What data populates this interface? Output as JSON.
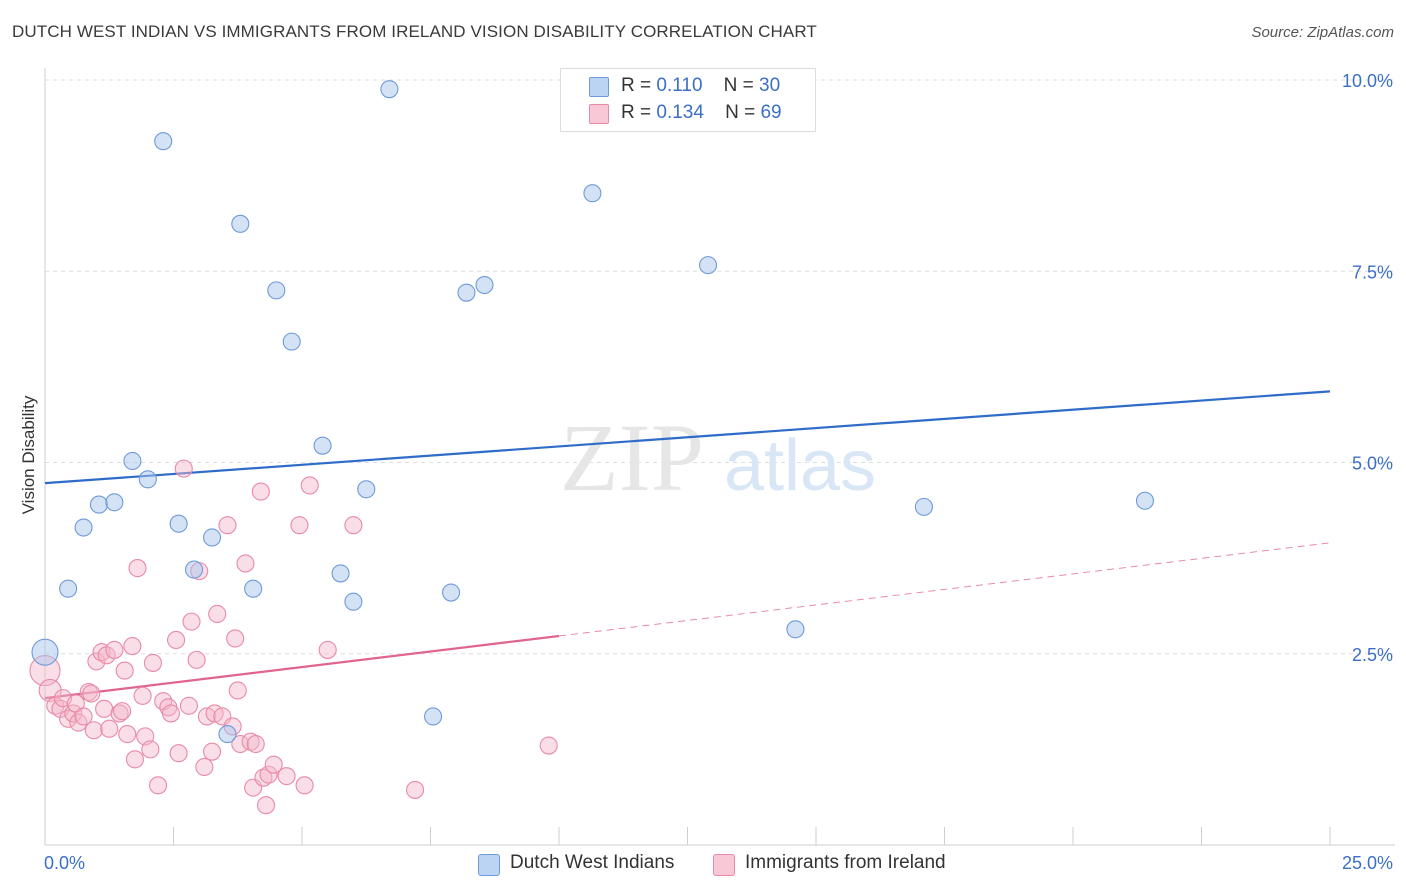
{
  "title": "DUTCH WEST INDIAN VS IMMIGRANTS FROM IRELAND VISION DISABILITY CORRELATION CHART",
  "source": "Source: ZipAtlas.com",
  "legend": {
    "r_label": "R =",
    "n_label": "N =",
    "rows": [
      {
        "r": "0.110",
        "n": "30"
      },
      {
        "r": "0.134",
        "n": "69"
      }
    ]
  },
  "watermark": {
    "zip": "ZIP",
    "atlas": "atlas"
  },
  "colors": {
    "blue_fill": "#a9c6ee",
    "blue_stroke": "#6f9ad8",
    "blue_line": "#2f6cc9",
    "pink_fill": "#f5b6c9",
    "pink_stroke": "#e88aa6",
    "pink_line": "#e0648e",
    "axis_text": "#3b6fc6"
  },
  "chart_data": {
    "type": "scatter",
    "title": "DUTCH WEST INDIAN VS IMMIGRANTS FROM IRELAND VISION DISABILITY CORRELATION CHART",
    "xlabel": "",
    "ylabel": "Vision Disability",
    "xlim": [
      0,
      25
    ],
    "ylim": [
      0,
      10
    ],
    "x_tick_labels": [
      "0.0%",
      "25.0%"
    ],
    "y_ticks": [
      2.5,
      5.0,
      7.5,
      10.0
    ],
    "y_tick_labels": [
      "2.5%",
      "5.0%",
      "7.5%",
      "10.0%"
    ],
    "grid": true,
    "legend_position": "top-center",
    "series": [
      {
        "name": "Dutch West Indians",
        "r": 0.11,
        "n": 30,
        "trend": {
          "x": [
            0,
            25
          ],
          "y": [
            4.73,
            5.93
          ]
        },
        "points": [
          [
            0.0,
            2.52
          ],
          [
            0.45,
            3.35
          ],
          [
            0.75,
            4.15
          ],
          [
            1.05,
            4.45
          ],
          [
            1.35,
            4.48
          ],
          [
            1.7,
            5.02
          ],
          [
            2.0,
            4.78
          ],
          [
            2.3,
            9.2
          ],
          [
            2.6,
            4.2
          ],
          [
            2.9,
            3.6
          ],
          [
            3.25,
            4.02
          ],
          [
            3.55,
            1.45
          ],
          [
            3.8,
            8.12
          ],
          [
            4.05,
            3.35
          ],
          [
            4.5,
            7.25
          ],
          [
            4.8,
            6.58
          ],
          [
            5.4,
            5.22
          ],
          [
            5.75,
            3.55
          ],
          [
            6.0,
            3.18
          ],
          [
            6.25,
            4.65
          ],
          [
            6.7,
            9.88
          ],
          [
            7.55,
            1.68
          ],
          [
            7.9,
            3.3
          ],
          [
            8.2,
            7.22
          ],
          [
            8.55,
            7.32
          ],
          [
            10.65,
            8.52
          ],
          [
            12.9,
            7.58
          ],
          [
            14.6,
            2.82
          ],
          [
            17.1,
            4.42
          ],
          [
            21.4,
            4.5
          ]
        ]
      },
      {
        "name": "Immigrants from Ireland",
        "r": 0.134,
        "n": 69,
        "trend": {
          "x": [
            0,
            25
          ],
          "y": [
            1.92,
            3.95
          ],
          "solid_until_x": 10.0
        },
        "points": [
          [
            0.0,
            2.28
          ],
          [
            0.1,
            2.02
          ],
          [
            0.2,
            1.82
          ],
          [
            0.3,
            1.78
          ],
          [
            0.35,
            1.92
          ],
          [
            0.45,
            1.65
          ],
          [
            0.55,
            1.72
          ],
          [
            0.6,
            1.85
          ],
          [
            0.65,
            1.6
          ],
          [
            0.75,
            1.68
          ],
          [
            0.85,
            2.0
          ],
          [
            0.9,
            1.98
          ],
          [
            0.95,
            1.5
          ],
          [
            1.0,
            2.4
          ],
          [
            1.1,
            2.52
          ],
          [
            1.15,
            1.78
          ],
          [
            1.2,
            2.48
          ],
          [
            1.25,
            1.52
          ],
          [
            1.35,
            2.55
          ],
          [
            1.45,
            1.72
          ],
          [
            1.5,
            1.75
          ],
          [
            1.55,
            2.28
          ],
          [
            1.6,
            1.45
          ],
          [
            1.7,
            2.6
          ],
          [
            1.75,
            1.12
          ],
          [
            1.8,
            3.62
          ],
          [
            1.9,
            1.95
          ],
          [
            1.95,
            1.42
          ],
          [
            2.05,
            1.25
          ],
          [
            2.1,
            2.38
          ],
          [
            2.2,
            0.78
          ],
          [
            2.3,
            1.88
          ],
          [
            2.4,
            1.8
          ],
          [
            2.45,
            1.72
          ],
          [
            2.55,
            2.68
          ],
          [
            2.6,
            1.2
          ],
          [
            2.7,
            4.92
          ],
          [
            2.8,
            1.82
          ],
          [
            2.85,
            2.92
          ],
          [
            2.95,
            2.42
          ],
          [
            3.0,
            3.58
          ],
          [
            3.1,
            1.02
          ],
          [
            3.15,
            1.68
          ],
          [
            3.25,
            1.22
          ],
          [
            3.3,
            1.72
          ],
          [
            3.35,
            3.02
          ],
          [
            3.45,
            1.68
          ],
          [
            3.55,
            4.18
          ],
          [
            3.65,
            1.55
          ],
          [
            3.7,
            2.7
          ],
          [
            3.75,
            2.02
          ],
          [
            3.8,
            1.32
          ],
          [
            3.9,
            3.68
          ],
          [
            4.0,
            1.35
          ],
          [
            4.05,
            0.75
          ],
          [
            4.1,
            1.32
          ],
          [
            4.2,
            4.62
          ],
          [
            4.25,
            0.88
          ],
          [
            4.3,
            0.52
          ],
          [
            4.35,
            0.92
          ],
          [
            4.45,
            1.05
          ],
          [
            4.7,
            0.9
          ],
          [
            4.95,
            4.18
          ],
          [
            5.05,
            0.78
          ],
          [
            5.15,
            4.7
          ],
          [
            5.5,
            2.55
          ],
          [
            6.0,
            4.18
          ],
          [
            7.2,
            0.72
          ],
          [
            9.8,
            1.3
          ]
        ]
      }
    ]
  },
  "bottom_legend": [
    "Dutch West Indians",
    "Immigrants from Ireland"
  ]
}
